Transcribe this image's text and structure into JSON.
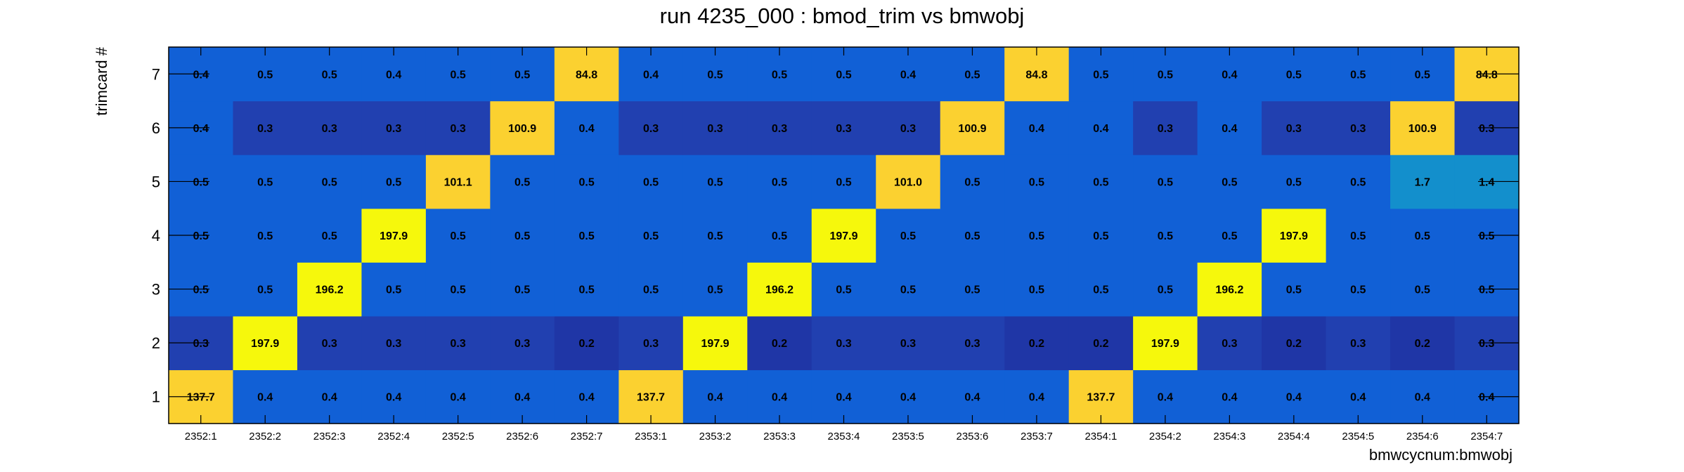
{
  "chart_data": {
    "type": "heatmap",
    "title": "run 4235_000 : bmod_trim vs bmwobj",
    "xlabel": "bmwcycnum:bmwobj",
    "ylabel": "trimcard #",
    "x_categories": [
      "2352:1",
      "2352:2",
      "2352:3",
      "2352:4",
      "2352:5",
      "2352:6",
      "2352:7",
      "2353:1",
      "2353:2",
      "2353:3",
      "2353:4",
      "2353:5",
      "2353:6",
      "2353:7",
      "2354:1",
      "2354:2",
      "2354:3",
      "2354:4",
      "2354:5",
      "2354:6",
      "2354:7"
    ],
    "y_categories": [
      "1",
      "2",
      "3",
      "4",
      "5",
      "6",
      "7"
    ],
    "values": [
      [
        "137.7",
        "0.4",
        "0.4",
        "0.4",
        "0.4",
        "0.4",
        "0.4",
        "137.7",
        "0.4",
        "0.4",
        "0.4",
        "0.4",
        "0.4",
        "0.4",
        "137.7",
        "0.4",
        "0.4",
        "0.4",
        "0.4",
        "0.4",
        "0.4"
      ],
      [
        "0.3",
        "197.9",
        "0.3",
        "0.3",
        "0.3",
        "0.3",
        "0.2",
        "0.3",
        "197.9",
        "0.2",
        "0.3",
        "0.3",
        "0.3",
        "0.2",
        "0.2",
        "197.9",
        "0.3",
        "0.2",
        "0.3",
        "0.2",
        "0.3"
      ],
      [
        "0.5",
        "0.5",
        "196.2",
        "0.5",
        "0.5",
        "0.5",
        "0.5",
        "0.5",
        "0.5",
        "196.2",
        "0.5",
        "0.5",
        "0.5",
        "0.5",
        "0.5",
        "0.5",
        "196.2",
        "0.5",
        "0.5",
        "0.5",
        "0.5"
      ],
      [
        "0.5",
        "0.5",
        "0.5",
        "197.9",
        "0.5",
        "0.5",
        "0.5",
        "0.5",
        "0.5",
        "0.5",
        "197.9",
        "0.5",
        "0.5",
        "0.5",
        "0.5",
        "0.5",
        "0.5",
        "197.9",
        "0.5",
        "0.5",
        "0.5"
      ],
      [
        "0.5",
        "0.5",
        "0.5",
        "0.5",
        "101.1",
        "0.5",
        "0.5",
        "0.5",
        "0.5",
        "0.5",
        "0.5",
        "101.0",
        "0.5",
        "0.5",
        "0.5",
        "0.5",
        "0.5",
        "0.5",
        "0.5",
        "1.7",
        "1.4"
      ],
      [
        "0.4",
        "0.3",
        "0.3",
        "0.3",
        "0.3",
        "100.9",
        "0.4",
        "0.3",
        "0.3",
        "0.3",
        "0.3",
        "0.3",
        "100.9",
        "0.4",
        "0.4",
        "0.3",
        "0.4",
        "0.3",
        "0.3",
        "100.9",
        "0.3"
      ],
      [
        "0.4",
        "0.5",
        "0.5",
        "0.4",
        "0.5",
        "0.5",
        "84.8",
        "0.4",
        "0.5",
        "0.5",
        "0.5",
        "0.4",
        "0.5",
        "84.8",
        "0.5",
        "0.5",
        "0.4",
        "0.5",
        "0.5",
        "0.5",
        "84.8"
      ]
    ],
    "grid": false,
    "legend": "none",
    "colormap": {
      "very_low": "#1f36a6",
      "low": "#2140b0",
      "base": "#1160d6",
      "mid": "#138fcc",
      "orange": "#fbd130",
      "high": "#f6f80c"
    }
  }
}
